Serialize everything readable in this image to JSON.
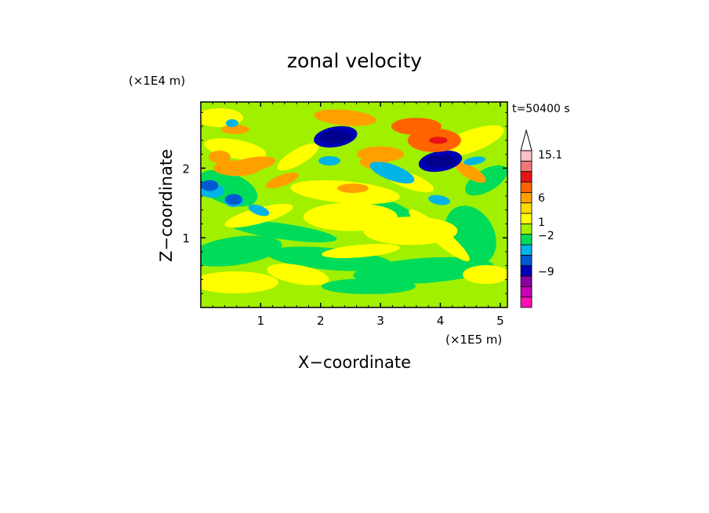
{
  "chart_data": {
    "type": "heatmap",
    "title": "zonal velocity",
    "xlabel": "X−coordinate",
    "ylabel": "Z−coordinate",
    "x_scale_label": "(×1E5 m)",
    "y_scale_label": "(×1E4 m)",
    "time_label": "t=50400 s",
    "xlim": [
      0,
      5.12
    ],
    "ylim": [
      0,
      2.95
    ],
    "x_ticks": [
      1,
      2,
      3,
      4,
      5
    ],
    "y_ticks": [
      1,
      2
    ],
    "x_tick_labels": [
      "1",
      "2",
      "3",
      "4",
      "5"
    ],
    "y_tick_labels": [
      "1",
      "2"
    ],
    "colorbar": {
      "labeled_levels": [
        "15.1",
        "6",
        "1",
        "−2",
        "−9"
      ],
      "colors": [
        "#ff0fb4",
        "#c800b4",
        "#8c00a0",
        "#0000b4",
        "#005ad2",
        "#00b4e6",
        "#00dc5a",
        "#a0f000",
        "#ffff00",
        "#ffdc00",
        "#ffa000",
        "#ff6400",
        "#e61414",
        "#f07878",
        "#ffbec8"
      ],
      "extend_max_color": "#ffffff"
    },
    "features": [
      {
        "x": 2.25,
        "z": 2.45,
        "value": -9
      },
      {
        "x": 4.0,
        "z": 2.1,
        "value": -9
      },
      {
        "x": 0.55,
        "z": 1.55,
        "value": -5
      },
      {
        "x": 0.15,
        "z": 1.75,
        "value": -5
      },
      {
        "x": 3.9,
        "z": 2.4,
        "value": 9
      },
      {
        "x": 3.6,
        "z": 2.6,
        "value": 5
      },
      {
        "x": 0.6,
        "z": 2.0,
        "value": 3
      },
      {
        "x": 3.0,
        "z": 2.2,
        "value": 3
      },
      {
        "x": 2.5,
        "z": 1.3,
        "value": 0.5
      },
      {
        "x": 3.5,
        "z": 1.1,
        "value": 0.5
      }
    ]
  }
}
